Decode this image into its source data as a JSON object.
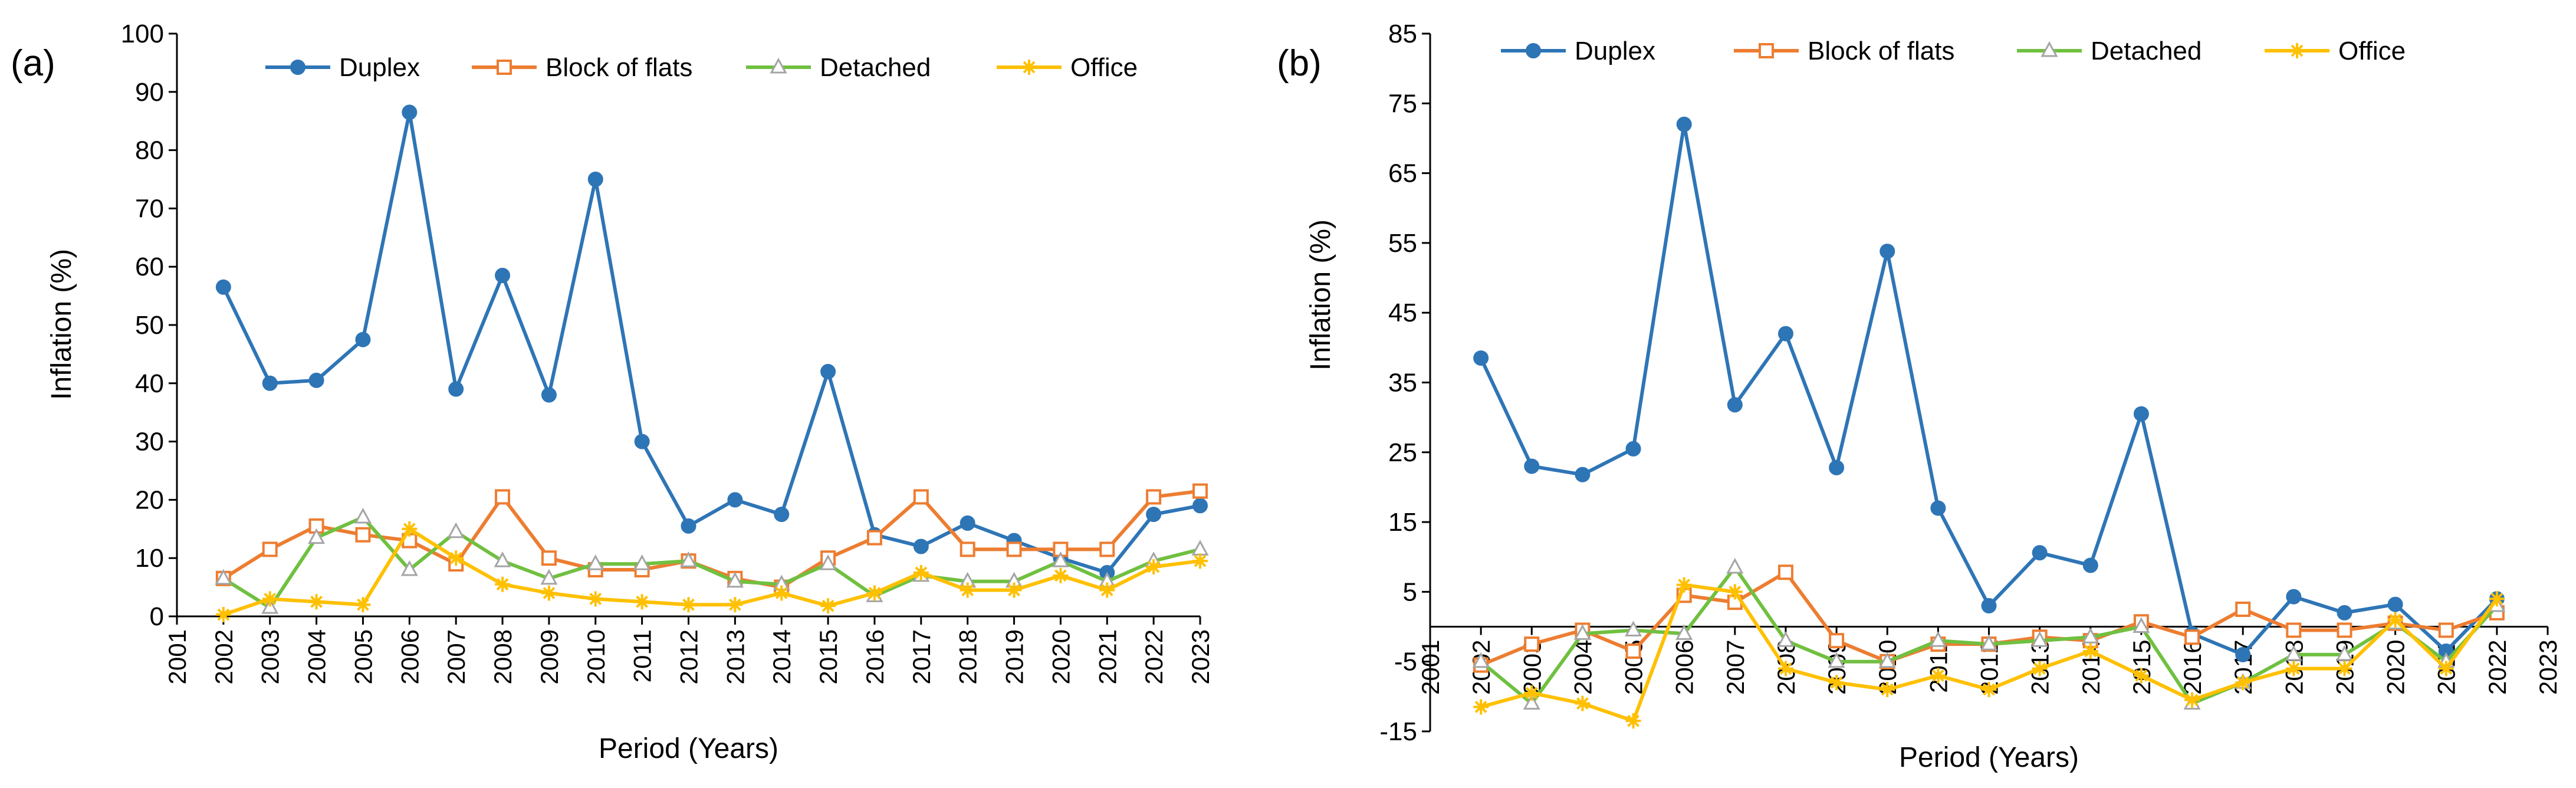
{
  "chart_data": [
    {
      "panel_label": "(a)",
      "type": "line",
      "xlabel": "Period (Years)",
      "ylabel": "Inflation (%)",
      "x_ticks": [
        "2001",
        "2002",
        "2003",
        "2004",
        "2005",
        "2006",
        "2007",
        "2008",
        "2009",
        "2010",
        "2011",
        "2012",
        "2013",
        "2014",
        "2015",
        "2016",
        "2017",
        "2018",
        "2019",
        "2020",
        "2021",
        "2022",
        "2023"
      ],
      "xlim": [
        2001,
        2023
      ],
      "ylim": [
        0,
        100
      ],
      "y_ticks": [
        0,
        10,
        20,
        30,
        40,
        50,
        60,
        70,
        80,
        90,
        100
      ],
      "x": [
        2002,
        2003,
        2004,
        2005,
        2006,
        2007,
        2008,
        2009,
        2010,
        2011,
        2012,
        2013,
        2014,
        2015,
        2016,
        2017,
        2018,
        2019,
        2020,
        2021,
        2022,
        2023
      ],
      "series": [
        {
          "name": "Duplex",
          "color": "#2E75B6",
          "marker": "circle",
          "values": [
            56.5,
            40,
            40.5,
            47.5,
            86.5,
            39,
            58.5,
            38,
            75,
            30,
            15.5,
            20,
            17.5,
            42,
            14,
            12,
            16,
            13,
            10,
            7.5,
            17.5,
            19
          ]
        },
        {
          "name": "Block of flats",
          "color": "#ED7D31",
          "marker": "square",
          "values": [
            6.5,
            11.5,
            15.5,
            14,
            13,
            9,
            20.5,
            10,
            8,
            8,
            9.5,
            6.5,
            5,
            10,
            13.5,
            20.5,
            11.5,
            11.5,
            11.5,
            11.5,
            20.5,
            21.5
          ]
        },
        {
          "name": "Detached",
          "color": "#70C040",
          "marker": "triangle",
          "values": [
            6.5,
            1.5,
            13.5,
            17,
            8,
            14.5,
            9.5,
            6.5,
            9,
            9,
            9.5,
            6,
            5.5,
            9,
            3.5,
            7,
            6,
            6,
            9.5,
            6,
            9.5,
            11.5
          ]
        },
        {
          "name": "Office",
          "color": "#FFC000",
          "marker": "asterisk",
          "values": [
            0.3,
            3,
            2.5,
            2,
            15,
            10,
            5.5,
            4,
            3,
            2.5,
            2,
            2,
            4,
            1.8,
            4,
            7.5,
            4.5,
            4.5,
            7,
            4.5,
            8.5,
            9.5
          ]
        }
      ]
    },
    {
      "panel_label": "(b)",
      "type": "line",
      "xlabel": "Period (Years)",
      "ylabel": "Inflation (%)",
      "x_ticks": [
        "2001",
        "2002",
        "2003",
        "2004",
        "2005",
        "2006",
        "2007",
        "2008",
        "2009",
        "2010",
        "2011",
        "2012",
        "2013",
        "2014",
        "2015",
        "2016",
        "2017",
        "2018",
        "2019",
        "2020",
        "2021",
        "2022",
        "2023"
      ],
      "xlim": [
        2001,
        2023
      ],
      "ylim": [
        -15,
        85
      ],
      "y_ticks": [
        -15,
        -5,
        5,
        15,
        25,
        35,
        45,
        55,
        65,
        75,
        85
      ],
      "x": [
        2002,
        2003,
        2004,
        2005,
        2006,
        2007,
        2008,
        2009,
        2010,
        2011,
        2012,
        2013,
        2014,
        2015,
        2016,
        2017,
        2018,
        2019,
        2020,
        2021,
        2022
      ],
      "series": [
        {
          "name": "Duplex",
          "color": "#2E75B6",
          "marker": "circle",
          "values": [
            38.5,
            23,
            21.8,
            25.5,
            72,
            31.8,
            42,
            22.8,
            53.8,
            17,
            3,
            10.6,
            8.8,
            30.5,
            -1,
            -4,
            4.3,
            2,
            3.2,
            -3.5,
            4
          ]
        },
        {
          "name": "Block of flats",
          "color": "#ED7D31",
          "marker": "square",
          "values": [
            -5.5,
            -2.5,
            -0.5,
            -3.5,
            4.5,
            3.5,
            7.8,
            -2,
            -5,
            -2.5,
            -2.5,
            -1.5,
            -2,
            0.7,
            -1.5,
            2.5,
            -0.5,
            -0.5,
            0.5,
            -0.5,
            2
          ]
        },
        {
          "name": "Detached",
          "color": "#70C040",
          "marker": "triangle",
          "values": [
            -5,
            -11,
            -1,
            -0.5,
            -1,
            8.5,
            -2,
            -5,
            -5,
            -2,
            -2.5,
            -2,
            -1.5,
            0,
            -11,
            -8,
            -4,
            -4,
            0.5,
            -5,
            3
          ]
        },
        {
          "name": "Office",
          "color": "#FFC000",
          "marker": "asterisk",
          "values": [
            -11.5,
            -9.5,
            -11,
            -13.5,
            6,
            5,
            -6,
            -8,
            -9,
            -7,
            -9,
            -6,
            -3.5,
            -7,
            -10.5,
            -8,
            -6,
            -6,
            1,
            -6,
            4
          ]
        }
      ]
    }
  ]
}
